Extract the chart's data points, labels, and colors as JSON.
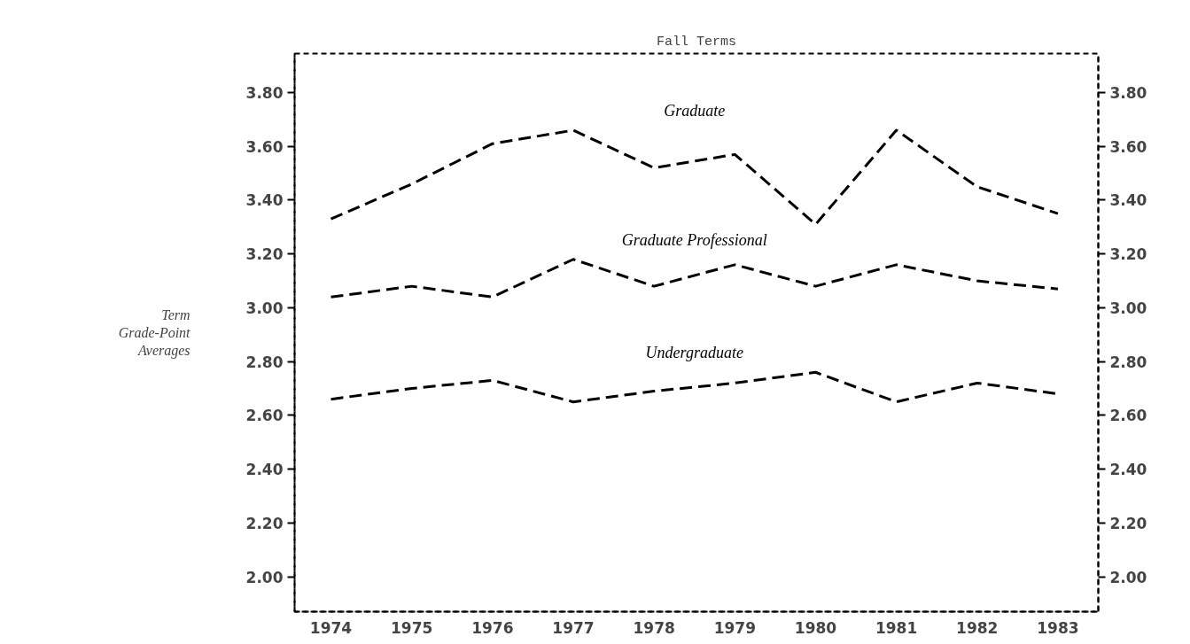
{
  "chart_data": {
    "type": "line",
    "title": "Fall Terms",
    "ylabel": "Term\nGrade-Point\nAverages",
    "x": [
      1974,
      1975,
      1976,
      1977,
      1978,
      1979,
      1980,
      1981,
      1982,
      1983
    ],
    "series": [
      {
        "name": "Graduate",
        "color": "#000000",
        "line_style": "dashed",
        "values": [
          3.33,
          3.46,
          3.61,
          3.66,
          3.52,
          3.57,
          3.31,
          3.66,
          3.45,
          3.35
        ]
      },
      {
        "name": "Graduate Professional",
        "color": "#000000",
        "line_style": "dashed",
        "values": [
          3.04,
          3.08,
          3.04,
          3.18,
          3.08,
          3.16,
          3.08,
          3.16,
          3.1,
          3.07
        ]
      },
      {
        "name": "Undergraduate",
        "color": "#000000",
        "line_style": "dashed",
        "values": [
          2.66,
          2.7,
          2.73,
          2.65,
          2.69,
          2.72,
          2.76,
          2.65,
          2.72,
          2.68
        ]
      }
    ],
    "xlim": [
      1973.55,
      1983.5
    ],
    "xticks": [
      1974,
      1975,
      1976,
      1977,
      1978,
      1979,
      1980,
      1981,
      1982,
      1983
    ],
    "ylim": [
      1.87,
      3.945
    ],
    "yticks": [
      {
        "value": 2.0,
        "label": "2.00"
      },
      {
        "value": 2.2,
        "label": "2.20"
      },
      {
        "value": 2.4,
        "label": "2.40"
      },
      {
        "value": 2.6,
        "label": "2.60"
      },
      {
        "value": 2.8,
        "label": "2.80"
      },
      {
        "value": 3.0,
        "label": "3.00"
      },
      {
        "value": 3.2,
        "label": "3.20"
      },
      {
        "value": 3.4,
        "label": "3.40"
      },
      {
        "value": 3.6,
        "label": "3.60"
      },
      {
        "value": 3.8,
        "label": "3.80"
      }
    ],
    "y2lim": [
      1.87,
      3.945
    ],
    "y2ticks": [
      {
        "value": 2.0,
        "label": "2.00"
      },
      {
        "value": 2.2,
        "label": "2.20"
      },
      {
        "value": 2.4,
        "label": "2.40"
      },
      {
        "value": 2.6,
        "label": "2.60"
      },
      {
        "value": 2.8,
        "label": "2.80"
      },
      {
        "value": 3.0,
        "label": "3.00"
      },
      {
        "value": 3.2,
        "label": "3.20"
      },
      {
        "value": 3.4,
        "label": "3.40"
      },
      {
        "value": 3.6,
        "label": "3.60"
      },
      {
        "value": 3.8,
        "label": "3.80"
      }
    ],
    "grid": false,
    "marker": "none"
  }
}
